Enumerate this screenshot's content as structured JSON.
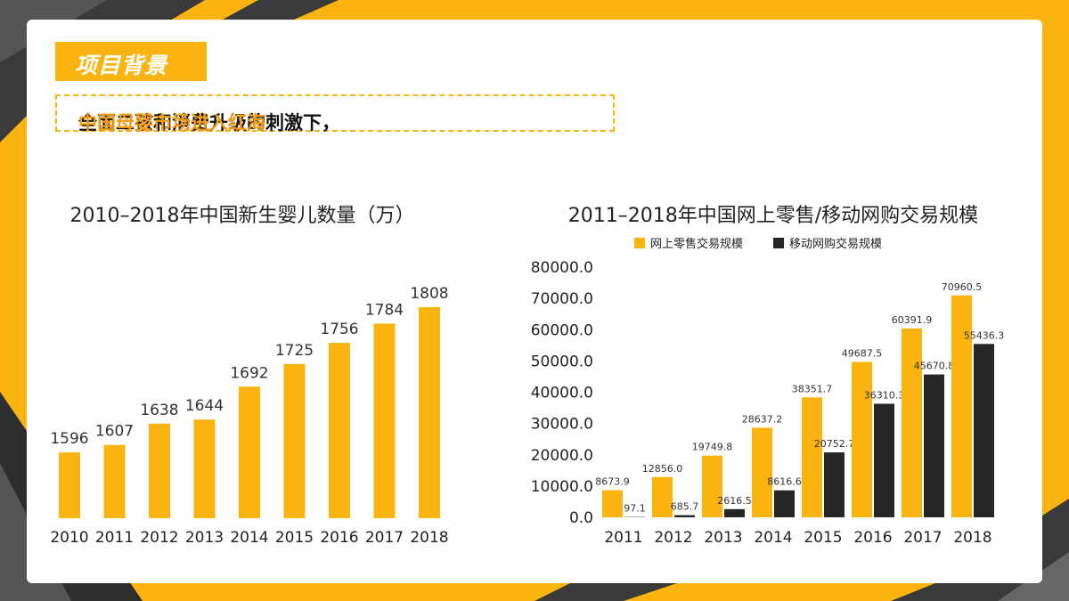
{
  "header": {
    "tag": "项目背景",
    "headline_main": "全面二孩和消费升级的刺激下，",
    "headline_highlight": "中国母婴市场进入红海"
  },
  "colors": {
    "accent": "#fbb40f",
    "dark": "#262626",
    "highlight": "#f39c12"
  },
  "chart_data": [
    {
      "type": "bar",
      "title": "2010–2018年中国新生婴儿数量（万）",
      "categories": [
        "2010",
        "2011",
        "2012",
        "2013",
        "2014",
        "2015",
        "2016",
        "2017",
        "2018"
      ],
      "values": [
        1596,
        1607,
        1638,
        1644,
        1692,
        1725,
        1756,
        1784,
        1808
      ],
      "value_labels": [
        "1596",
        "1607",
        "1638",
        "1644",
        "1692",
        "1725",
        "1756",
        "1784",
        "1808"
      ],
      "color": "#fbb40f",
      "grid": false
    },
    {
      "type": "bar",
      "title": "2011–2018年中国网上零售/移动网购交易规模",
      "categories": [
        "2011",
        "2012",
        "2013",
        "2014",
        "2015",
        "2016",
        "2017",
        "2018"
      ],
      "series": [
        {
          "name": "网上零售交易规模",
          "color": "#fbb40f",
          "values": [
            8673.9,
            12856.0,
            19749.8,
            28637.2,
            38351.7,
            49687.5,
            60391.9,
            70960.5
          ],
          "labels": [
            "8673.9",
            "12856.0",
            "19749.8",
            "28637.2",
            "38351.7",
            "49687.5",
            "60391.9",
            "70960.5"
          ]
        },
        {
          "name": "移动网购交易规模",
          "color": "#262626",
          "values": [
            97.1,
            685.7,
            2616.5,
            8616.6,
            20752.7,
            36310.3,
            45670.8,
            55436.3
          ],
          "labels": [
            "97.1",
            "685.7",
            "2616.5",
            "8616.6",
            "20752.7",
            "36310.3",
            "45670.8",
            "55436.3"
          ]
        }
      ],
      "yticks": [
        "0.0",
        "10000.0",
        "20000.0",
        "30000.0",
        "40000.0",
        "50000.0",
        "60000.0",
        "70000.0",
        "80000.0"
      ],
      "ylim": [
        0,
        80000
      ],
      "legend": "top",
      "grid": false
    }
  ]
}
